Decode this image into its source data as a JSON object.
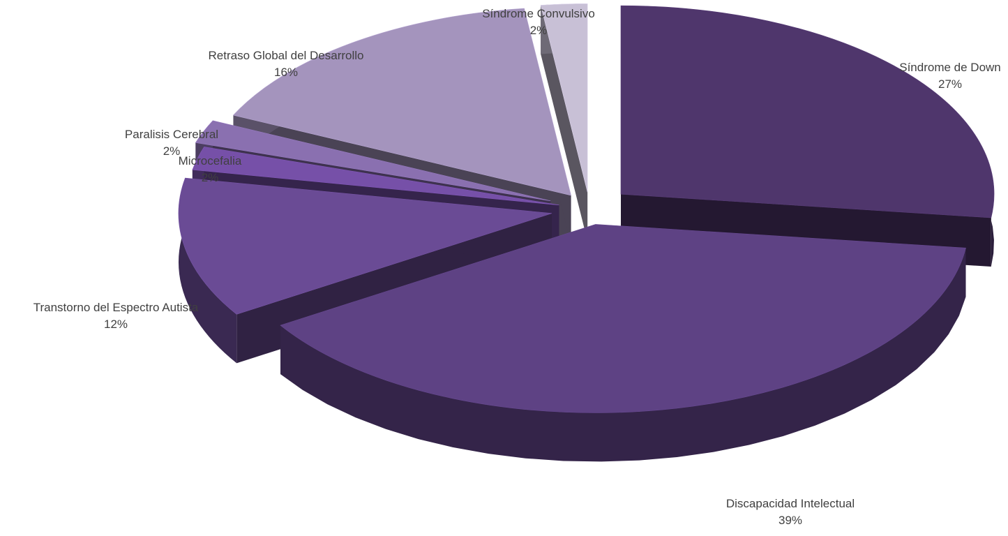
{
  "chart_data": {
    "type": "pie",
    "style": "3d-exploded",
    "categories": [
      "Síndrome de Down",
      "Discapacidad Intelectual",
      "Transtorno del Espectro Autista",
      "Microcefalia",
      "Paralisis Cerebral",
      "Retraso Global del Desarrollo",
      "Síndrome Convulsivo"
    ],
    "values": [
      27,
      39,
      12,
      2,
      2,
      16,
      2
    ],
    "labels": [
      "27%",
      "39%",
      "12%",
      "2%",
      "2%",
      "16%",
      "2%"
    ],
    "colors": [
      "#4f366c",
      "#5e4284",
      "#6a4b95",
      "#7650a8",
      "#8a70b0",
      "#a494bd",
      "#c8c0d6"
    ],
    "legend": "none",
    "grid": false
  }
}
